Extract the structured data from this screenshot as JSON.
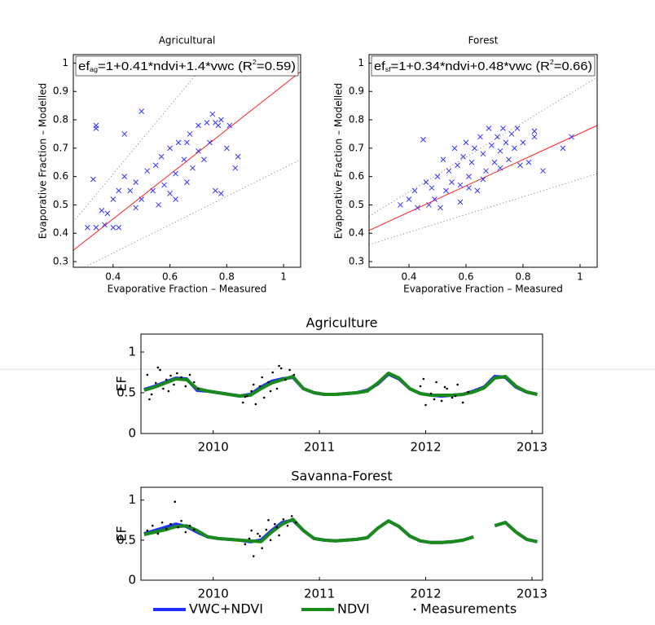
{
  "chart_data": [
    {
      "type": "scatter",
      "title": "Agricultural",
      "xlabel": "Evaporative Fraction – Measured",
      "ylabel": "Evaporative Fraction – Modelled",
      "annotation": [
        "ef",
        "ag",
        "=1+0.41*ndvi+1.4*vwc (R",
        "2",
        "=0.59)"
      ],
      "xlim": [
        0.26,
        1.06
      ],
      "ylim": [
        0.28,
        1.03
      ],
      "xticks": [
        0.4,
        0.6,
        0.8,
        1
      ],
      "yticks": [
        0.3,
        0.4,
        0.5,
        0.6,
        0.7,
        0.8,
        0.9,
        1
      ],
      "color": "#3333ff",
      "x": [
        0.34,
        0.34,
        0.33,
        0.31,
        0.34,
        0.37,
        0.4,
        0.42,
        0.38,
        0.4,
        0.42,
        0.44,
        0.44,
        0.46,
        0.48,
        0.5,
        0.5,
        0.52,
        0.54,
        0.55,
        0.57,
        0.58,
        0.6,
        0.6,
        0.62,
        0.63,
        0.65,
        0.66,
        0.67,
        0.68,
        0.7,
        0.7,
        0.72,
        0.73,
        0.74,
        0.75,
        0.76,
        0.76,
        0.77,
        0.78,
        0.78,
        0.8,
        0.81,
        0.83,
        0.84,
        0.62,
        0.56,
        0.36,
        0.48,
        0.66
      ],
      "values": [
        0.78,
        0.77,
        0.59,
        0.42,
        0.42,
        0.43,
        0.42,
        0.42,
        0.47,
        0.52,
        0.55,
        0.6,
        0.75,
        0.55,
        0.58,
        0.52,
        0.83,
        0.62,
        0.55,
        0.64,
        0.67,
        0.57,
        0.54,
        0.7,
        0.61,
        0.72,
        0.66,
        0.58,
        0.75,
        0.63,
        0.69,
        0.78,
        0.66,
        0.79,
        0.72,
        0.82,
        0.79,
        0.55,
        0.78,
        0.54,
        0.8,
        0.7,
        0.78,
        0.63,
        0.67,
        0.52,
        0.5,
        0.48,
        0.49,
        0.72
      ],
      "lines": [
        {
          "x": [
            0.26,
            1.06
          ],
          "y": [
            0.34,
            0.97
          ],
          "color": "#ff2020",
          "style": "solid"
        },
        {
          "x": [
            0.26,
            0.75
          ],
          "y": [
            0.44,
            1.03
          ],
          "color": "#777777",
          "style": "dotted"
        },
        {
          "x": [
            0.3,
            1.06
          ],
          "y": [
            0.28,
            0.66
          ],
          "color": "#777777",
          "style": "dotted"
        }
      ]
    },
    {
      "type": "scatter",
      "title": "Forest",
      "xlabel": "Evaporative Fraction – Measured",
      "ylabel": "Evaporative Fraction – Modelled",
      "annotation": [
        "ef",
        "sf",
        "=1+0.34*ndvi+0.48*vwc (R",
        "2",
        "=0.66)"
      ],
      "xlim": [
        0.26,
        1.06
      ],
      "ylim": [
        0.28,
        1.03
      ],
      "xticks": [
        0.4,
        0.6,
        0.8,
        1
      ],
      "yticks": [
        0.3,
        0.4,
        0.5,
        0.6,
        0.7,
        0.8,
        0.9,
        1
      ],
      "color": "#3333ff",
      "x": [
        0.37,
        0.4,
        0.42,
        0.43,
        0.45,
        0.46,
        0.47,
        0.49,
        0.5,
        0.51,
        0.53,
        0.54,
        0.55,
        0.56,
        0.57,
        0.58,
        0.59,
        0.6,
        0.61,
        0.62,
        0.63,
        0.64,
        0.65,
        0.66,
        0.67,
        0.68,
        0.69,
        0.7,
        0.71,
        0.72,
        0.73,
        0.74,
        0.75,
        0.76,
        0.77,
        0.78,
        0.79,
        0.8,
        0.82,
        0.84,
        0.84,
        0.87,
        0.94,
        0.97,
        0.52,
        0.58,
        0.66,
        0.72,
        0.48,
        0.61
      ],
      "values": [
        0.5,
        0.52,
        0.55,
        0.49,
        0.73,
        0.58,
        0.5,
        0.52,
        0.6,
        0.49,
        0.55,
        0.62,
        0.58,
        0.7,
        0.64,
        0.57,
        0.67,
        0.72,
        0.6,
        0.65,
        0.7,
        0.55,
        0.74,
        0.68,
        0.62,
        0.77,
        0.71,
        0.65,
        0.74,
        0.69,
        0.77,
        0.72,
        0.66,
        0.75,
        0.7,
        0.77,
        0.64,
        0.72,
        0.65,
        0.76,
        0.74,
        0.62,
        0.7,
        0.74,
        0.66,
        0.51,
        0.59,
        0.63,
        0.56,
        0.56
      ],
      "lines": [
        {
          "x": [
            0.26,
            1.06
          ],
          "y": [
            0.41,
            0.78
          ],
          "color": "#ff2020",
          "style": "solid"
        },
        {
          "x": [
            0.26,
            1.06
          ],
          "y": [
            0.46,
            0.95
          ],
          "color": "#777777",
          "style": "dotted"
        },
        {
          "x": [
            0.26,
            1.06
          ],
          "y": [
            0.36,
            0.61
          ],
          "color": "#777777",
          "style": "dotted"
        }
      ]
    },
    {
      "type": "line",
      "title": "Agriculture",
      "ylabel": "EF",
      "xlim": [
        2009.32,
        2013.1
      ],
      "ylim": [
        0,
        1.22
      ],
      "xticks": [
        2010,
        2011,
        2012,
        2013
      ],
      "yticks": [
        0,
        0.5,
        1
      ],
      "x": [
        2009.35,
        2009.45,
        2009.55,
        2009.65,
        2009.75,
        2009.85,
        2009.95,
        2010.05,
        2010.15,
        2010.25,
        2010.35,
        2010.45,
        2010.55,
        2010.65,
        2010.75,
        2010.85,
        2010.95,
        2011.05,
        2011.15,
        2011.25,
        2011.35,
        2011.45,
        2011.55,
        2011.65,
        2011.75,
        2011.85,
        2011.95,
        2012.05,
        2012.15,
        2012.25,
        2012.35,
        2012.45,
        2012.55,
        2012.65,
        2012.75,
        2012.85,
        2012.95,
        2013.05
      ],
      "series": [
        {
          "color": "#1f2fff",
          "mode": "line",
          "values": [
            0.54,
            0.58,
            0.63,
            0.68,
            0.67,
            0.53,
            0.52,
            0.5,
            0.48,
            0.46,
            0.48,
            0.57,
            0.64,
            0.67,
            0.69,
            0.55,
            0.5,
            0.48,
            0.48,
            0.49,
            0.5,
            0.53,
            0.61,
            0.73,
            0.67,
            0.55,
            0.49,
            0.47,
            0.46,
            0.47,
            0.48,
            0.52,
            0.57,
            0.7,
            0.69,
            0.57,
            0.51,
            0.48
          ]
        },
        {
          "color": "#1a8a1a",
          "mode": "line",
          "values": [
            0.53,
            0.57,
            0.62,
            0.67,
            0.66,
            0.55,
            0.52,
            0.5,
            0.48,
            0.46,
            0.47,
            0.55,
            0.62,
            0.66,
            0.7,
            0.55,
            0.5,
            0.48,
            0.48,
            0.49,
            0.5,
            0.52,
            0.62,
            0.74,
            0.68,
            0.55,
            0.49,
            0.47,
            0.47,
            0.47,
            0.48,
            0.51,
            0.56,
            0.68,
            0.7,
            0.58,
            0.51,
            0.48
          ]
        },
        {
          "color": "#000000",
          "mode": "markers",
          "x": [
            2009.38,
            2009.42,
            2009.46,
            2009.5,
            2009.53,
            2009.56,
            2009.6,
            2009.63,
            2009.66,
            2009.7,
            2009.74,
            2009.78,
            2009.82,
            2009.86,
            2009.4,
            2009.48,
            2009.58,
            2010.28,
            2010.32,
            2010.36,
            2010.4,
            2010.44,
            2010.48,
            2010.52,
            2010.56,
            2010.6,
            2010.64,
            2010.68,
            2010.72,
            2010.76,
            2010.3,
            2010.38,
            2010.46,
            2010.54,
            2010.62,
            2011.95,
            2012.0,
            2012.05,
            2012.1,
            2012.15,
            2012.2,
            2012.25,
            2012.3,
            2012.35,
            2012.4,
            2011.98,
            2012.08,
            2012.18,
            2012.28
          ],
          "values": [
            0.72,
            0.48,
            0.62,
            0.78,
            0.55,
            0.66,
            0.71,
            0.6,
            0.74,
            0.69,
            0.58,
            0.72,
            0.63,
            0.55,
            0.42,
            0.81,
            0.52,
            0.38,
            0.46,
            0.52,
            0.36,
            0.58,
            0.44,
            0.63,
            0.75,
            0.55,
            0.8,
            0.66,
            0.78,
            0.72,
            0.45,
            0.6,
            0.69,
            0.52,
            0.83,
            0.58,
            0.35,
            0.49,
            0.63,
            0.4,
            0.55,
            0.44,
            0.6,
            0.38,
            0.51,
            0.67,
            0.42,
            0.57,
            0.46
          ]
        }
      ]
    },
    {
      "type": "line",
      "title": "Savanna-Forest",
      "ylabel": "EF",
      "xlim": [
        2009.32,
        2013.1
      ],
      "ylim": [
        0,
        1.16
      ],
      "xticks": [
        2010,
        2011,
        2012,
        2013
      ],
      "yticks": [
        0,
        0.5,
        1
      ],
      "x": [
        2009.35,
        2009.45,
        2009.55,
        2009.65,
        2009.75,
        2009.85,
        2009.95,
        2010.05,
        2010.15,
        2010.25,
        2010.35,
        2010.45,
        2010.55,
        2010.65,
        2010.75,
        2010.85,
        2010.95,
        2011.05,
        2011.15,
        2011.25,
        2011.35,
        2011.45,
        2011.55,
        2011.65,
        2011.75,
        2011.85,
        2011.95,
        2012.05,
        2012.15,
        2012.25,
        2012.35,
        2012.45,
        2012.55,
        2012.65,
        2012.75,
        2012.85,
        2012.95,
        2013.05
      ],
      "series": [
        {
          "name": "VWC+NDVI",
          "color": "#1f2fff",
          "mode": "line",
          "values": [
            0.58,
            0.62,
            0.66,
            0.7,
            0.67,
            0.6,
            0.54,
            0.52,
            0.51,
            0.5,
            0.48,
            0.5,
            0.62,
            0.72,
            0.75,
            0.62,
            0.52,
            0.5,
            0.49,
            0.5,
            0.51,
            0.53,
            0.65,
            0.74,
            0.67,
            0.55,
            0.49,
            0.47,
            0.47,
            0.48,
            0.5,
            0.54,
            null,
            0.68,
            0.72,
            0.6,
            0.51,
            0.48
          ]
        },
        {
          "name": "NDVI",
          "color": "#1a8a1a",
          "mode": "line",
          "values": [
            0.57,
            0.6,
            0.63,
            0.67,
            0.68,
            0.62,
            0.54,
            0.52,
            0.51,
            0.5,
            0.49,
            0.48,
            0.6,
            0.7,
            0.76,
            0.62,
            0.52,
            0.5,
            0.49,
            0.5,
            0.51,
            0.53,
            0.65,
            0.74,
            0.67,
            0.55,
            0.49,
            0.47,
            0.47,
            0.48,
            0.5,
            0.54,
            null,
            0.68,
            0.72,
            0.6,
            0.51,
            0.48
          ]
        },
        {
          "name": "Measurements",
          "color": "#000000",
          "mode": "markers",
          "x": [
            2009.38,
            2009.43,
            2009.48,
            2009.52,
            2009.56,
            2009.6,
            2009.64,
            2009.67,
            2009.7,
            2009.74,
            2009.78,
            2009.82,
            2010.3,
            2010.34,
            2010.38,
            2010.42,
            2010.46,
            2010.5,
            2010.54,
            2010.58,
            2010.62,
            2010.66,
            2010.7,
            2010.74,
            2010.78,
            2010.36,
            2010.44,
            2010.52,
            2010.6
          ],
          "values": [
            0.62,
            0.68,
            0.58,
            0.72,
            0.64,
            0.7,
            0.98,
            0.66,
            0.74,
            0.6,
            0.68,
            0.63,
            0.45,
            0.52,
            0.3,
            0.58,
            0.4,
            0.63,
            0.5,
            0.7,
            0.56,
            0.76,
            0.68,
            0.8,
            0.72,
            0.62,
            0.55,
            0.75,
            0.66
          ]
        }
      ]
    }
  ]
}
